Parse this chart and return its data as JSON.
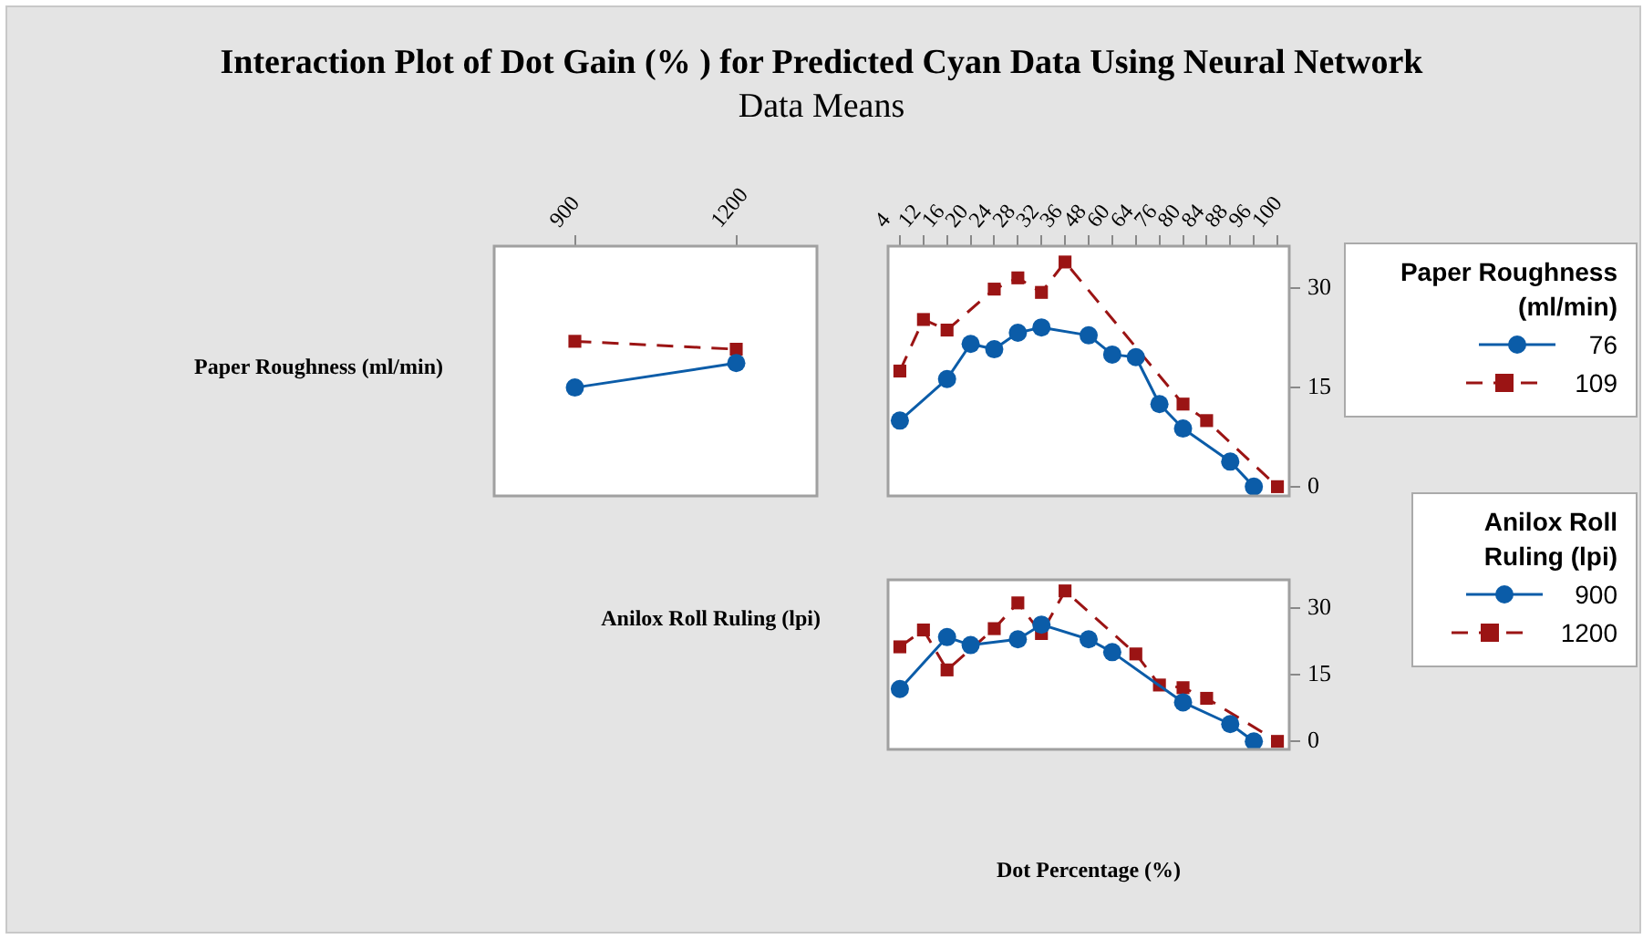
{
  "chart_data": [
    {
      "type": "line",
      "title": "Interaction Plot of Dot Gain (% ) for Predicted Cyan Data Using Neural Network",
      "subtitle": "Data Means",
      "ylabel": "Paper Roughness (ml/min)",
      "categories": [
        "900",
        "1200"
      ],
      "ylim": [
        -1.4,
        36.4
      ],
      "tick_labels": "x",
      "grid": false,
      "legend": false,
      "series": [
        {
          "color": "#0b5ca8",
          "marker": "circle",
          "line_style": "solid",
          "values": [
            15.0,
            18.7
          ]
        },
        {
          "color": "#9b1414",
          "marker": "square",
          "line_style": "dashed",
          "values": [
            22.0,
            20.8
          ]
        }
      ]
    },
    {
      "type": "line",
      "categories": [
        "4",
        "12",
        "16",
        "20",
        "24",
        "28",
        "32",
        "36",
        "48",
        "60",
        "64",
        "76",
        "80",
        "84",
        "88",
        "96",
        "100"
      ],
      "ylim": [
        -1.4,
        36.4
      ],
      "yticks": [
        0,
        15,
        30
      ],
      "grid": false,
      "legend": "right",
      "legend_title": "Paper Roughness (ml/min)",
      "series": [
        {
          "name": "76",
          "color": "#0b5ca8",
          "marker": "circle",
          "line_style": "solid",
          "values": [
            10.0,
            null,
            16.3,
            21.6,
            20.8,
            23.3,
            24.1,
            null,
            22.9,
            20.0,
            19.6,
            12.5,
            8.8,
            null,
            3.8,
            0,
            null
          ]
        },
        {
          "name": "109",
          "color": "#9b1414",
          "marker": "square",
          "line_style": "dashed",
          "values": [
            17.5,
            25.3,
            23.7,
            null,
            29.9,
            31.6,
            29.4,
            34.0,
            null,
            null,
            null,
            null,
            12.5,
            10.0,
            null,
            null,
            0
          ]
        }
      ]
    },
    {
      "type": "line",
      "ylabel": "Anilox Roll Ruling (lpi)",
      "xlabel": "Dot Percentage (%)",
      "categories": [
        "4",
        "12",
        "16",
        "20",
        "24",
        "28",
        "32",
        "36",
        "48",
        "60",
        "64",
        "76",
        "80",
        "84",
        "88",
        "96",
        "100"
      ],
      "ylim": [
        -1.8,
        36.4
      ],
      "yticks": [
        0,
        15,
        30
      ],
      "tick_labels": "y",
      "grid": false,
      "legend": "right",
      "legend_title": "Anilox Roll Ruling (lpi)",
      "series": [
        {
          "name": "900",
          "color": "#0b5ca8",
          "marker": "circle",
          "line_style": "solid",
          "values": [
            11.8,
            null,
            23.5,
            21.7,
            null,
            23.0,
            26.3,
            null,
            23.0,
            20.1,
            null,
            null,
            8.8,
            null,
            3.9,
            0,
            null
          ]
        },
        {
          "name": "1200",
          "color": "#9b1414",
          "marker": "square",
          "line_style": "dashed",
          "values": [
            21.3,
            25.1,
            16.1,
            null,
            25.4,
            31.2,
            24.3,
            33.9,
            null,
            null,
            19.7,
            12.7,
            12.1,
            9.7,
            null,
            null,
            0
          ]
        }
      ]
    }
  ]
}
